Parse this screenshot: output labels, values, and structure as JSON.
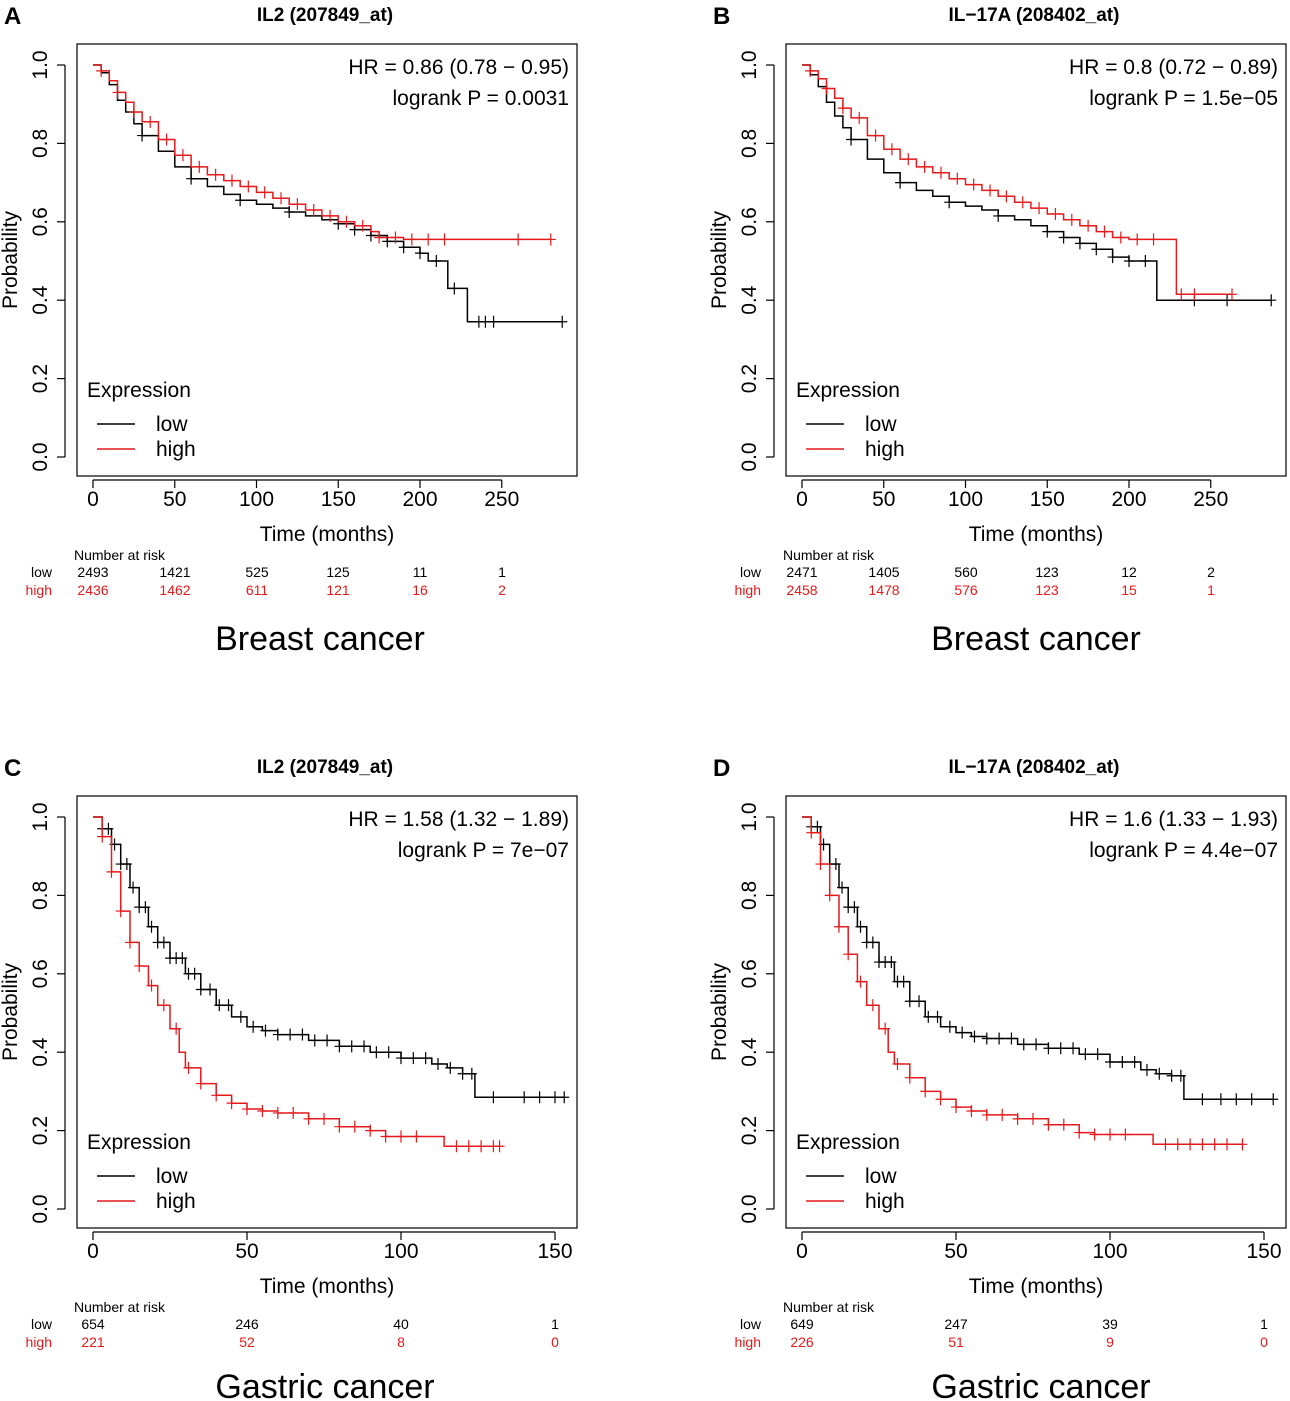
{
  "colors": {
    "low": "#000000",
    "high": "#e41a1c"
  },
  "chart_data": [
    {
      "type": "line",
      "panel_letter": "A",
      "title": "IL2 (207849_at)",
      "xlabel": "Time (months)",
      "ylabel": "Probability",
      "xlim": [
        0,
        295
      ],
      "ylim": [
        0,
        1
      ],
      "xticks": [
        "0",
        "50",
        "100",
        "150",
        "200",
        "250"
      ],
      "xtick_values": [
        0,
        50,
        100,
        150,
        200,
        250
      ],
      "yticks": [
        "0.0",
        "0.2",
        "0.4",
        "0.6",
        "0.8",
        "1.0"
      ],
      "ytick_values": [
        0,
        0.2,
        0.4,
        0.6,
        0.8,
        1.0
      ],
      "hr_text": "HR = 0.86 (0.78 − 0.95)",
      "logrank_text": "logrank P = 0.0031",
      "legend_title": "Expression",
      "series": [
        {
          "name": "low",
          "key": "low",
          "x": [
            0,
            5,
            10,
            15,
            20,
            25,
            30,
            40,
            50,
            60,
            70,
            80,
            90,
            100,
            110,
            120,
            130,
            140,
            150,
            160,
            170,
            180,
            190,
            200,
            205,
            210,
            217,
            217,
            225,
            229,
            229,
            240,
            270,
            287
          ],
          "y": [
            1.0,
            0.98,
            0.95,
            0.91,
            0.88,
            0.85,
            0.82,
            0.78,
            0.74,
            0.71,
            0.69,
            0.67,
            0.655,
            0.645,
            0.635,
            0.625,
            0.615,
            0.605,
            0.595,
            0.58,
            0.565,
            0.55,
            0.535,
            0.52,
            0.5,
            0.5,
            0.5,
            0.43,
            0.43,
            0.43,
            0.345,
            0.345,
            0.345,
            0.345
          ],
          "censor_x": [
            30,
            60,
            90,
            120,
            150,
            160,
            170,
            180,
            190,
            200,
            210,
            221,
            236,
            240,
            245,
            287
          ]
        },
        {
          "name": "high",
          "key": "high",
          "x": [
            0,
            5,
            10,
            15,
            20,
            25,
            30,
            40,
            50,
            60,
            70,
            80,
            90,
            100,
            110,
            120,
            130,
            140,
            150,
            160,
            170,
            175,
            190,
            200,
            220,
            260,
            280
          ],
          "y": [
            1.0,
            0.985,
            0.96,
            0.93,
            0.905,
            0.88,
            0.855,
            0.81,
            0.77,
            0.74,
            0.72,
            0.705,
            0.69,
            0.675,
            0.66,
            0.645,
            0.63,
            0.615,
            0.6,
            0.59,
            0.575,
            0.56,
            0.555,
            0.555,
            0.555,
            0.555,
            0.555
          ],
          "censor_x": [
            5,
            15,
            25,
            35,
            45,
            55,
            65,
            75,
            85,
            95,
            105,
            115,
            125,
            135,
            145,
            155,
            165,
            175,
            185,
            195,
            205,
            215,
            260,
            280
          ]
        }
      ],
      "risk_table": {
        "header": "Number at risk",
        "rows": [
          {
            "label": "low",
            "key": "low",
            "values": [
              "2493",
              "1421",
              "525",
              "125",
              "11",
              "1"
            ]
          },
          {
            "label": "high",
            "key": "high",
            "values": [
              "2436",
              "1462",
              "611",
              "121",
              "16",
              "2"
            ]
          }
        ]
      },
      "caption": "Breast cancer"
    },
    {
      "type": "line",
      "panel_letter": "B",
      "title": "IL−17A (208402_at)",
      "xlabel": "Time (months)",
      "ylabel": "Probability",
      "xlim": [
        0,
        295
      ],
      "ylim": [
        0,
        1
      ],
      "xticks": [
        "0",
        "50",
        "100",
        "150",
        "200",
        "250"
      ],
      "xtick_values": [
        0,
        50,
        100,
        150,
        200,
        250
      ],
      "yticks": [
        "0.0",
        "0.2",
        "0.4",
        "0.6",
        "0.8",
        "1.0"
      ],
      "ytick_values": [
        0,
        0.2,
        0.4,
        0.6,
        0.8,
        1.0
      ],
      "hr_text": "HR = 0.8 (0.72 − 0.89)",
      "logrank_text": "logrank P = 1.5e−05",
      "legend_title": "Expression",
      "series": [
        {
          "name": "low",
          "key": "low",
          "x": [
            0,
            5,
            10,
            15,
            20,
            25,
            30,
            40,
            50,
            60,
            70,
            80,
            90,
            100,
            110,
            120,
            130,
            140,
            150,
            160,
            170,
            180,
            190,
            200,
            210,
            217,
            217,
            250,
            287
          ],
          "y": [
            1.0,
            0.975,
            0.945,
            0.905,
            0.87,
            0.84,
            0.81,
            0.76,
            0.725,
            0.7,
            0.68,
            0.665,
            0.65,
            0.64,
            0.63,
            0.615,
            0.605,
            0.59,
            0.575,
            0.56,
            0.545,
            0.53,
            0.51,
            0.5,
            0.5,
            0.5,
            0.4,
            0.4,
            0.4
          ],
          "censor_x": [
            30,
            60,
            90,
            120,
            150,
            160,
            170,
            180,
            190,
            200,
            210,
            240,
            260,
            287
          ]
        },
        {
          "name": "high",
          "key": "high",
          "x": [
            0,
            5,
            10,
            15,
            20,
            25,
            30,
            40,
            50,
            60,
            70,
            80,
            90,
            100,
            110,
            120,
            130,
            140,
            150,
            160,
            170,
            180,
            190,
            200,
            210,
            229,
            229,
            240,
            263
          ],
          "y": [
            1.0,
            0.985,
            0.965,
            0.94,
            0.915,
            0.89,
            0.865,
            0.82,
            0.785,
            0.76,
            0.74,
            0.725,
            0.71,
            0.695,
            0.68,
            0.665,
            0.65,
            0.635,
            0.62,
            0.605,
            0.59,
            0.575,
            0.56,
            0.555,
            0.555,
            0.555,
            0.415,
            0.415,
            0.415
          ],
          "censor_x": [
            5,
            15,
            25,
            35,
            45,
            55,
            65,
            75,
            85,
            95,
            105,
            115,
            125,
            135,
            145,
            155,
            165,
            175,
            185,
            195,
            205,
            215,
            232,
            240,
            263
          ]
        }
      ],
      "risk_table": {
        "header": "Number at risk",
        "rows": [
          {
            "label": "low",
            "key": "low",
            "values": [
              "2471",
              "1405",
              "560",
              "123",
              "12",
              "2"
            ]
          },
          {
            "label": "high",
            "key": "high",
            "values": [
              "2458",
              "1478",
              "576",
              "123",
              "15",
              "1"
            ]
          }
        ]
      },
      "caption": "Breast cancer"
    },
    {
      "type": "line",
      "panel_letter": "C",
      "title": "IL2 (207849_at)",
      "xlabel": "Time (months)",
      "ylabel": "Probability",
      "xlim": [
        0,
        155
      ],
      "ylim": [
        0,
        1
      ],
      "xticks": [
        "0",
        "50",
        "100",
        "150"
      ],
      "xtick_values": [
        0,
        50,
        100,
        150
      ],
      "yticks": [
        "0.0",
        "0.2",
        "0.4",
        "0.6",
        "0.8",
        "1.0"
      ],
      "ytick_values": [
        0,
        0.2,
        0.4,
        0.6,
        0.8,
        1.0
      ],
      "hr_text": "HR = 1.58 (1.32 − 1.89)",
      "logrank_text": "logrank P = 7e−07",
      "legend_title": "Expression",
      "series": [
        {
          "name": "low",
          "key": "low",
          "x": [
            0,
            3,
            6,
            9,
            12,
            15,
            18,
            21,
            25,
            30,
            35,
            40,
            45,
            50,
            55,
            60,
            70,
            80,
            90,
            100,
            110,
            115,
            120,
            124,
            124,
            140,
            153
          ],
          "y": [
            1.0,
            0.97,
            0.93,
            0.88,
            0.82,
            0.77,
            0.72,
            0.68,
            0.64,
            0.6,
            0.56,
            0.52,
            0.49,
            0.465,
            0.455,
            0.445,
            0.43,
            0.415,
            0.4,
            0.385,
            0.37,
            0.36,
            0.345,
            0.34,
            0.285,
            0.285,
            0.285
          ],
          "censor_x": [
            3,
            5,
            7,
            9,
            11,
            13,
            15,
            17,
            19,
            21,
            23,
            25,
            27,
            29,
            31,
            33,
            35,
            38,
            41,
            44,
            48,
            52,
            56,
            60,
            64,
            68,
            72,
            76,
            80,
            84,
            88,
            92,
            96,
            100,
            104,
            108,
            112,
            116,
            120,
            123,
            130,
            140,
            145,
            150,
            153
          ]
        },
        {
          "name": "high",
          "key": "high",
          "x": [
            0,
            3,
            6,
            9,
            12,
            15,
            18,
            21,
            25,
            28,
            30,
            35,
            40,
            45,
            50,
            55,
            60,
            70,
            80,
            90,
            95,
            100,
            110,
            114,
            114,
            125,
            132
          ],
          "y": [
            1.0,
            0.95,
            0.86,
            0.76,
            0.68,
            0.62,
            0.57,
            0.52,
            0.46,
            0.4,
            0.36,
            0.32,
            0.29,
            0.27,
            0.255,
            0.25,
            0.245,
            0.23,
            0.21,
            0.2,
            0.185,
            0.185,
            0.185,
            0.185,
            0.16,
            0.16,
            0.16
          ],
          "censor_x": [
            3,
            6,
            9,
            12,
            15,
            19,
            23,
            27,
            31,
            35,
            40,
            45,
            50,
            55,
            60,
            65,
            70,
            75,
            80,
            85,
            90,
            95,
            100,
            105,
            118,
            122,
            126,
            130,
            132
          ]
        }
      ],
      "risk_table": {
        "header": "Number at risk",
        "rows": [
          {
            "label": "low",
            "key": "low",
            "values": [
              "654",
              "246",
              "40",
              "1"
            ]
          },
          {
            "label": "high",
            "key": "high",
            "values": [
              "221",
              "52",
              "8",
              "0"
            ]
          }
        ]
      },
      "caption": "Gastric cancer"
    },
    {
      "type": "line",
      "panel_letter": "D",
      "title": "IL−17A (208402_at)",
      "xlabel": "Time (months)",
      "ylabel": "Probability",
      "xlim": [
        0,
        155
      ],
      "ylim": [
        0,
        1
      ],
      "xticks": [
        "0",
        "50",
        "100",
        "150"
      ],
      "xtick_values": [
        0,
        50,
        100,
        150
      ],
      "yticks": [
        "0.0",
        "0.2",
        "0.4",
        "0.6",
        "0.8",
        "1.0"
      ],
      "ytick_values": [
        0,
        0.2,
        0.4,
        0.6,
        0.8,
        1.0
      ],
      "hr_text": "HR = 1.6 (1.33 − 1.93)",
      "logrank_text": "logrank P = 4.4e−07",
      "legend_title": "Expression",
      "series": [
        {
          "name": "low",
          "key": "low",
          "x": [
            0,
            3,
            6,
            9,
            12,
            15,
            18,
            21,
            25,
            30,
            35,
            40,
            45,
            50,
            55,
            60,
            70,
            80,
            90,
            100,
            110,
            115,
            120,
            124,
            124,
            140,
            153
          ],
          "y": [
            1.0,
            0.975,
            0.93,
            0.88,
            0.82,
            0.77,
            0.72,
            0.68,
            0.63,
            0.58,
            0.53,
            0.49,
            0.465,
            0.45,
            0.44,
            0.435,
            0.42,
            0.41,
            0.395,
            0.375,
            0.355,
            0.345,
            0.34,
            0.335,
            0.28,
            0.28,
            0.28
          ],
          "censor_x": [
            3,
            5,
            7,
            9,
            11,
            13,
            15,
            17,
            19,
            21,
            23,
            25,
            27,
            29,
            31,
            33,
            35,
            38,
            41,
            44,
            48,
            52,
            56,
            60,
            64,
            68,
            72,
            76,
            80,
            84,
            88,
            92,
            96,
            100,
            104,
            108,
            112,
            116,
            120,
            123,
            130,
            136,
            141,
            146,
            153
          ]
        },
        {
          "name": "high",
          "key": "high",
          "x": [
            0,
            3,
            6,
            9,
            12,
            15,
            18,
            21,
            25,
            28,
            30,
            35,
            40,
            45,
            50,
            55,
            60,
            70,
            80,
            90,
            95,
            100,
            110,
            114,
            114,
            125,
            143
          ],
          "y": [
            1.0,
            0.96,
            0.88,
            0.8,
            0.72,
            0.65,
            0.58,
            0.52,
            0.46,
            0.4,
            0.37,
            0.335,
            0.3,
            0.28,
            0.26,
            0.25,
            0.24,
            0.23,
            0.215,
            0.195,
            0.19,
            0.19,
            0.19,
            0.19,
            0.165,
            0.165,
            0.165
          ],
          "censor_x": [
            3,
            6,
            9,
            12,
            15,
            19,
            23,
            27,
            31,
            35,
            40,
            45,
            50,
            55,
            60,
            65,
            70,
            75,
            80,
            85,
            90,
            95,
            100,
            105,
            118,
            122,
            126,
            130,
            134,
            138,
            143
          ]
        }
      ],
      "risk_table": {
        "header": "Number at risk",
        "rows": [
          {
            "label": "low",
            "key": "low",
            "values": [
              "649",
              "247",
              "39",
              "1"
            ]
          },
          {
            "label": "high",
            "key": "high",
            "values": [
              "226",
              "51",
              "9",
              "0"
            ]
          }
        ]
      },
      "caption": "Gastric cancer"
    }
  ]
}
